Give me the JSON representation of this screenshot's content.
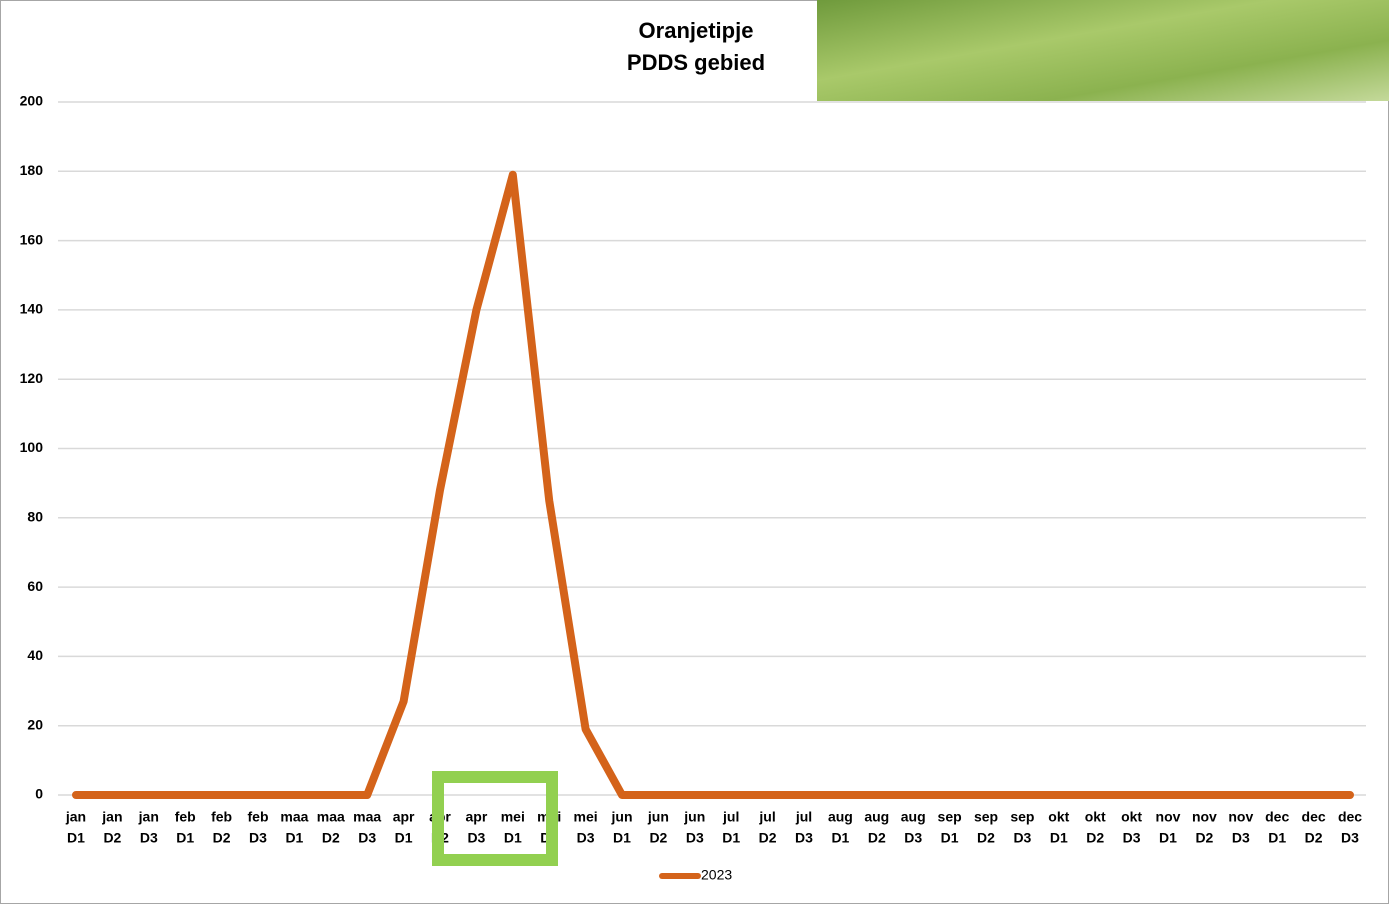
{
  "chart_data": {
    "type": "line",
    "title": "Oranjetipje",
    "subtitle": "PDDS gebied",
    "categories": [
      [
        "jan",
        "D1"
      ],
      [
        "jan",
        "D2"
      ],
      [
        "jan",
        "D3"
      ],
      [
        "feb",
        "D1"
      ],
      [
        "feb",
        "D2"
      ],
      [
        "feb",
        "D3"
      ],
      [
        "maa",
        "D1"
      ],
      [
        "maa",
        "D2"
      ],
      [
        "maa",
        "D3"
      ],
      [
        "apr",
        "D1"
      ],
      [
        "apr",
        "D2"
      ],
      [
        "apr",
        "D3"
      ],
      [
        "mei",
        "D1"
      ],
      [
        "mei",
        "D2"
      ],
      [
        "mei",
        "D3"
      ],
      [
        "jun",
        "D1"
      ],
      [
        "jun",
        "D2"
      ],
      [
        "jun",
        "D3"
      ],
      [
        "jul",
        "D1"
      ],
      [
        "jul",
        "D2"
      ],
      [
        "jul",
        "D3"
      ],
      [
        "aug",
        "D1"
      ],
      [
        "aug",
        "D2"
      ],
      [
        "aug",
        "D3"
      ],
      [
        "sep",
        "D1"
      ],
      [
        "sep",
        "D2"
      ],
      [
        "sep",
        "D3"
      ],
      [
        "okt",
        "D1"
      ],
      [
        "okt",
        "D2"
      ],
      [
        "okt",
        "D3"
      ],
      [
        "nov",
        "D1"
      ],
      [
        "nov",
        "D2"
      ],
      [
        "nov",
        "D3"
      ],
      [
        "dec",
        "D1"
      ],
      [
        "dec",
        "D2"
      ],
      [
        "dec",
        "D3"
      ]
    ],
    "series": [
      {
        "name": "2023",
        "color": "#d4631a",
        "values": [
          0,
          0,
          0,
          0,
          0,
          0,
          0,
          0,
          0,
          27,
          88,
          140,
          179,
          85,
          19,
          0,
          0,
          0,
          0,
          0,
          0,
          0,
          0,
          0,
          0,
          0,
          0,
          0,
          0,
          0,
          0,
          0,
          0,
          0,
          0,
          0
        ]
      }
    ],
    "ylim": [
      0,
      200
    ],
    "yticks": [
      0,
      20,
      40,
      60,
      80,
      100,
      120,
      140,
      160,
      180,
      200
    ],
    "grid": true,
    "legend": "bottom"
  }
}
